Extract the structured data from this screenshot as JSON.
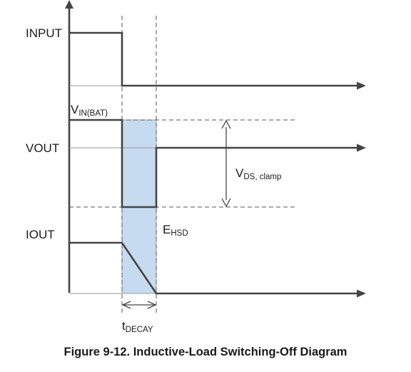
{
  "signals": {
    "input": "INPUT",
    "vout": "VOUT",
    "iout": "IOUT"
  },
  "annotations": {
    "vin_main": "V",
    "vin_sub": "IN(BAT)",
    "vds_main": "V",
    "vds_sub": "DS, clamp",
    "ehsd_main": "E",
    "ehsd_sub": "HSD",
    "tdecay_main": "t",
    "tdecay_sub": "DECAY"
  },
  "caption": "Figure 9-12. Inductive-Load Switching-Off Diagram",
  "colors": {
    "energy_fill": "#c6dbef",
    "signal_line": "#444444"
  }
}
